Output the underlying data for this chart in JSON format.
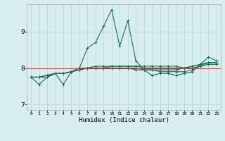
{
  "xlabel": "Humidex (Indice chaleur)",
  "ylabel": "",
  "bg_color": "#d8eeee",
  "grid_color": "#b8d8d8",
  "line_color": "#1a6b5a",
  "red_line_color": "#cc3333",
  "xlim": [
    -0.5,
    23.5
  ],
  "ylim": [
    6.85,
    9.75
  ],
  "yticks": [
    7,
    8,
    9
  ],
  "xticks": [
    0,
    1,
    2,
    3,
    4,
    5,
    6,
    7,
    8,
    9,
    10,
    11,
    12,
    13,
    14,
    15,
    16,
    17,
    18,
    19,
    20,
    21,
    22,
    23
  ],
  "series": [
    [
      7.75,
      7.55,
      7.75,
      7.85,
      7.55,
      7.9,
      8.0,
      8.55,
      8.7,
      9.15,
      9.6,
      8.6,
      9.3,
      8.2,
      7.95,
      7.8,
      7.85,
      7.85,
      7.8,
      7.85,
      7.9,
      8.1,
      8.3,
      8.2
    ],
    [
      7.75,
      7.75,
      7.75,
      7.85,
      7.85,
      7.9,
      8.0,
      8.0,
      8.05,
      8.05,
      8.05,
      8.05,
      8.05,
      8.05,
      8.05,
      8.05,
      8.05,
      8.05,
      8.05,
      8.0,
      8.0,
      8.05,
      8.15,
      8.15
    ],
    [
      7.75,
      7.75,
      7.8,
      7.85,
      7.85,
      7.9,
      7.95,
      8.0,
      8.0,
      8.0,
      8.05,
      8.05,
      8.05,
      8.05,
      8.0,
      8.0,
      8.0,
      8.0,
      8.0,
      8.0,
      8.05,
      8.1,
      8.15,
      8.15
    ],
    [
      7.75,
      7.75,
      7.8,
      7.85,
      7.85,
      7.9,
      7.95,
      8.0,
      8.0,
      8.0,
      8.0,
      8.0,
      8.0,
      8.0,
      7.95,
      7.95,
      7.95,
      7.95,
      7.95,
      8.0,
      8.05,
      8.1,
      8.15,
      8.15
    ],
    [
      7.75,
      7.75,
      7.8,
      7.85,
      7.85,
      7.9,
      7.95,
      8.0,
      8.0,
      8.0,
      8.0,
      8.0,
      8.0,
      7.95,
      7.95,
      7.95,
      7.9,
      7.9,
      7.9,
      7.9,
      7.95,
      8.05,
      8.1,
      8.1
    ]
  ]
}
